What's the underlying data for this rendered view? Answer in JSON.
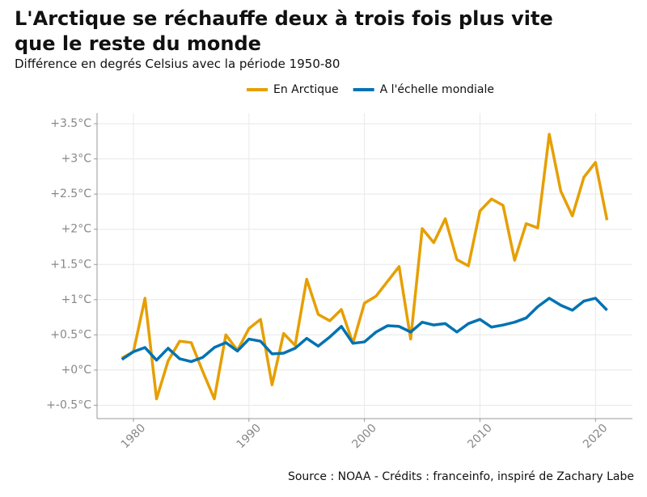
{
  "chart_data": {
    "type": "line",
    "title": "L'Arctique se réchauffe deux à trois fois plus vite que le reste du monde",
    "subtitle": "Différence en degrés Celsius avec la période 1950-80",
    "source": "Source : NOAA - Crédits : franceinfo, inspiré de Zachary Labe",
    "x": [
      1979,
      1980,
      1981,
      1982,
      1983,
      1984,
      1985,
      1986,
      1987,
      1988,
      1989,
      1990,
      1991,
      1992,
      1993,
      1994,
      1995,
      1996,
      1997,
      1998,
      1999,
      2000,
      2001,
      2002,
      2003,
      2004,
      2005,
      2006,
      2007,
      2008,
      2009,
      2010,
      2011,
      2012,
      2013,
      2014,
      2015,
      2016,
      2017,
      2018,
      2019,
      2020,
      2021
    ],
    "series": [
      {
        "name": "En Arctique",
        "color": "#e69f00",
        "values": [
          0.17,
          0.26,
          1.02,
          -0.41,
          0.13,
          0.41,
          0.39,
          -0.02,
          -0.41,
          0.5,
          0.28,
          0.59,
          0.72,
          -0.21,
          0.52,
          0.35,
          1.29,
          0.79,
          0.7,
          0.86,
          0.38,
          0.95,
          1.05,
          1.26,
          1.47,
          0.44,
          2.01,
          1.81,
          2.15,
          1.57,
          1.48,
          2.26,
          2.43,
          2.34,
          1.56,
          2.08,
          2.02,
          3.35,
          2.54,
          2.19,
          2.74,
          2.95,
          2.13
        ]
      },
      {
        "name": "A l'échelle mondiale",
        "color": "#0072b2",
        "values": [
          0.15,
          0.26,
          0.32,
          0.14,
          0.31,
          0.16,
          0.12,
          0.18,
          0.32,
          0.39,
          0.27,
          0.44,
          0.41,
          0.23,
          0.24,
          0.31,
          0.45,
          0.34,
          0.47,
          0.62,
          0.38,
          0.4,
          0.54,
          0.63,
          0.62,
          0.54,
          0.68,
          0.64,
          0.66,
          0.54,
          0.66,
          0.72,
          0.61,
          0.64,
          0.68,
          0.74,
          0.9,
          1.02,
          0.92,
          0.85,
          0.98,
          1.02,
          0.85
        ]
      }
    ],
    "xlim": [
      1976.85,
      2023.2
    ],
    "xticks": [
      1980,
      1990,
      2000,
      2010,
      2020
    ],
    "ylim": [
      -0.69,
      3.65
    ],
    "yticks": [
      {
        "value": -0.5,
        "label": "+-0.5°C"
      },
      {
        "value": 0,
        "label": "+0°C"
      },
      {
        "value": 0.5,
        "label": "+0.5°C"
      },
      {
        "value": 1,
        "label": "+1°C"
      },
      {
        "value": 1.5,
        "label": "+1.5°C"
      },
      {
        "value": 2,
        "label": "+2°C"
      },
      {
        "value": 2.5,
        "label": "+2.5°C"
      },
      {
        "value": 3,
        "label": "+3°C"
      },
      {
        "value": 3.5,
        "label": "+3.5°C"
      }
    ],
    "grid": true,
    "legend": "top"
  }
}
